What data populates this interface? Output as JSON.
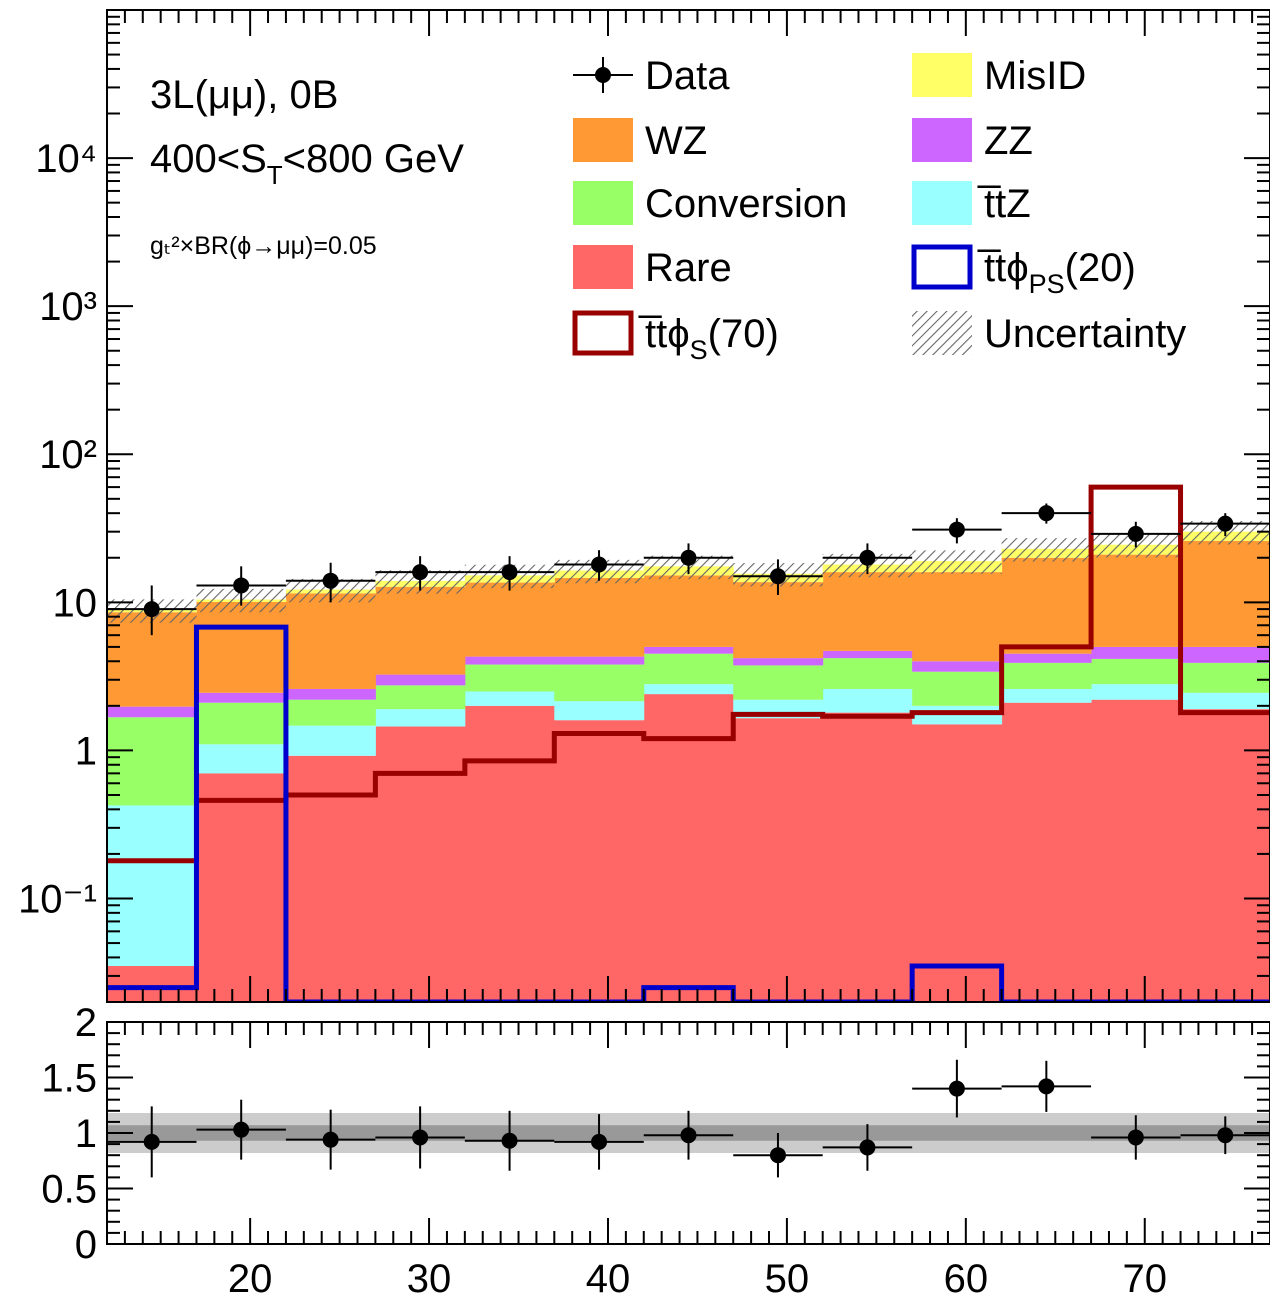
{
  "chart_data": [
    {
      "type": "bar",
      "stacked": true,
      "log_y": true,
      "ylim": [
        0.02,
        100000
      ],
      "xlim": [
        12,
        77
      ],
      "bin_edges": [
        12,
        17,
        22,
        27,
        32,
        37,
        42,
        47,
        52,
        57,
        62,
        67,
        72,
        77
      ],
      "y_tick_labels": [
        "10⁻¹",
        "1",
        "10",
        "10²",
        "10³",
        "10⁴"
      ],
      "annotations": {
        "channel": "3L(μμ), 0B",
        "st_range_pre": "400<S",
        "st_range_sub": "T",
        "st_range_post": "<800 GeV",
        "coupling": "gₜ²×BR(ϕ→μμ)=0.05"
      },
      "series": [
        {
          "name": "Rare",
          "color": "#ff6666",
          "values": [
            0.035,
            0.7,
            0.92,
            1.45,
            2.0,
            1.6,
            2.4,
            1.65,
            1.8,
            1.5,
            2.1,
            2.2,
            1.9
          ]
        },
        {
          "name": "t̅tZ",
          "color": "#99ffff",
          "values": [
            0.39,
            0.4,
            0.55,
            0.45,
            0.5,
            0.55,
            0.4,
            0.55,
            0.8,
            0.5,
            0.5,
            0.6,
            0.55
          ]
        },
        {
          "name": "Conversion",
          "color": "#99ff66",
          "values": [
            1.25,
            1.0,
            0.73,
            0.85,
            1.3,
            1.65,
            1.7,
            1.55,
            1.6,
            1.4,
            1.3,
            1.35,
            1.45
          ]
        },
        {
          "name": "ZZ",
          "color": "#cc66ff",
          "values": [
            0.3,
            0.35,
            0.4,
            0.5,
            0.5,
            0.5,
            0.5,
            0.45,
            0.5,
            0.6,
            0.6,
            0.85,
            1.1
          ]
        },
        {
          "name": "WZ",
          "color": "#ff9933",
          "values": [
            6.6,
            7.6,
            8.9,
            9.5,
            9.3,
            10.3,
            10.2,
            9.5,
            11.3,
            12.0,
            15.5,
            16.0,
            21.0
          ]
        },
        {
          "name": "MisID",
          "color": "#ffff66",
          "values": [
            0.3,
            0.4,
            0.7,
            1.2,
            1.6,
            1.8,
            2.3,
            1.9,
            2.0,
            3.0,
            3.0,
            3.5,
            4.0
          ]
        }
      ],
      "signals": [
        {
          "name": "t̅tϕ_S(70)",
          "color": "#990000",
          "values": [
            0.18,
            0.46,
            0.5,
            0.7,
            0.85,
            1.3,
            1.2,
            1.75,
            1.7,
            1.8,
            5.0,
            60.0,
            1.8
          ]
        },
        {
          "name": "t̅tϕ_PS(20)",
          "color": "#0000cc",
          "values": [
            0.025,
            6.8,
            0.02,
            0.02,
            0.02,
            0.02,
            0.025,
            0.02,
            0.02,
            0.035,
            0.02,
            0.02,
            0.02
          ]
        }
      ],
      "data_points": {
        "name": "Data",
        "x": [
          14.5,
          19.5,
          24.5,
          29.5,
          34.5,
          39.5,
          44.5,
          49.5,
          54.5,
          59.5,
          64.5,
          69.5,
          74.5
        ],
        "y": [
          9,
          13,
          14,
          16,
          16,
          18,
          20,
          15,
          20,
          31,
          40,
          29,
          34
        ],
        "y_low": [
          6,
          9.5,
          10,
          12,
          12,
          14,
          15.5,
          11.2,
          15.5,
          25,
          34,
          23.5,
          28
        ],
        "y_high": [
          13,
          17.5,
          18.5,
          20.5,
          20.5,
          22.5,
          25,
          19.5,
          25,
          37,
          46.5,
          35,
          40
        ]
      },
      "uncertainty_rel": 0.18,
      "legend": {
        "placement": "top-right",
        "items": [
          {
            "label": "Data",
            "kind": "marker"
          },
          {
            "label": "MisID",
            "kind": "fill",
            "color": "#ffff66"
          },
          {
            "label": "WZ",
            "kind": "fill",
            "color": "#ff9933"
          },
          {
            "label": "ZZ",
            "kind": "fill",
            "color": "#cc66ff"
          },
          {
            "label": "Conversion",
            "kind": "fill",
            "color": "#99ff66"
          },
          {
            "label": "t̅tZ",
            "kind": "fill",
            "color": "#99ffff"
          },
          {
            "label": "Rare",
            "kind": "fill",
            "color": "#ff6666"
          },
          {
            "label": "t̅tϕ",
            "sub": "PS",
            "post": "(20)",
            "kind": "line",
            "color": "#0000cc"
          },
          {
            "label": "t̅tϕ",
            "sub": "S",
            "post": "(70)",
            "kind": "line",
            "color": "#990000"
          },
          {
            "label": "Uncertainty",
            "kind": "hatch"
          }
        ]
      }
    },
    {
      "type": "scatter",
      "ylim": [
        0,
        2
      ],
      "xlim": [
        12,
        77
      ],
      "x_ticks": [
        20,
        30,
        40,
        50,
        60,
        70
      ],
      "y_tick_labels": [
        "0",
        "0.5",
        "1",
        "1.5",
        "2"
      ],
      "ratio_points": {
        "x": [
          14.5,
          19.5,
          24.5,
          29.5,
          34.5,
          39.5,
          44.5,
          49.5,
          54.5,
          59.5,
          64.5,
          69.5,
          74.5
        ],
        "y": [
          0.92,
          1.03,
          0.94,
          0.96,
          0.93,
          0.92,
          0.98,
          0.8,
          0.87,
          1.4,
          1.42,
          0.96,
          0.98
        ],
        "err": [
          0.32,
          0.27,
          0.27,
          0.28,
          0.27,
          0.25,
          0.22,
          0.2,
          0.21,
          0.26,
          0.23,
          0.2,
          0.17
        ]
      },
      "bands": {
        "outer": 0.18,
        "inner": 0.07
      }
    }
  ]
}
